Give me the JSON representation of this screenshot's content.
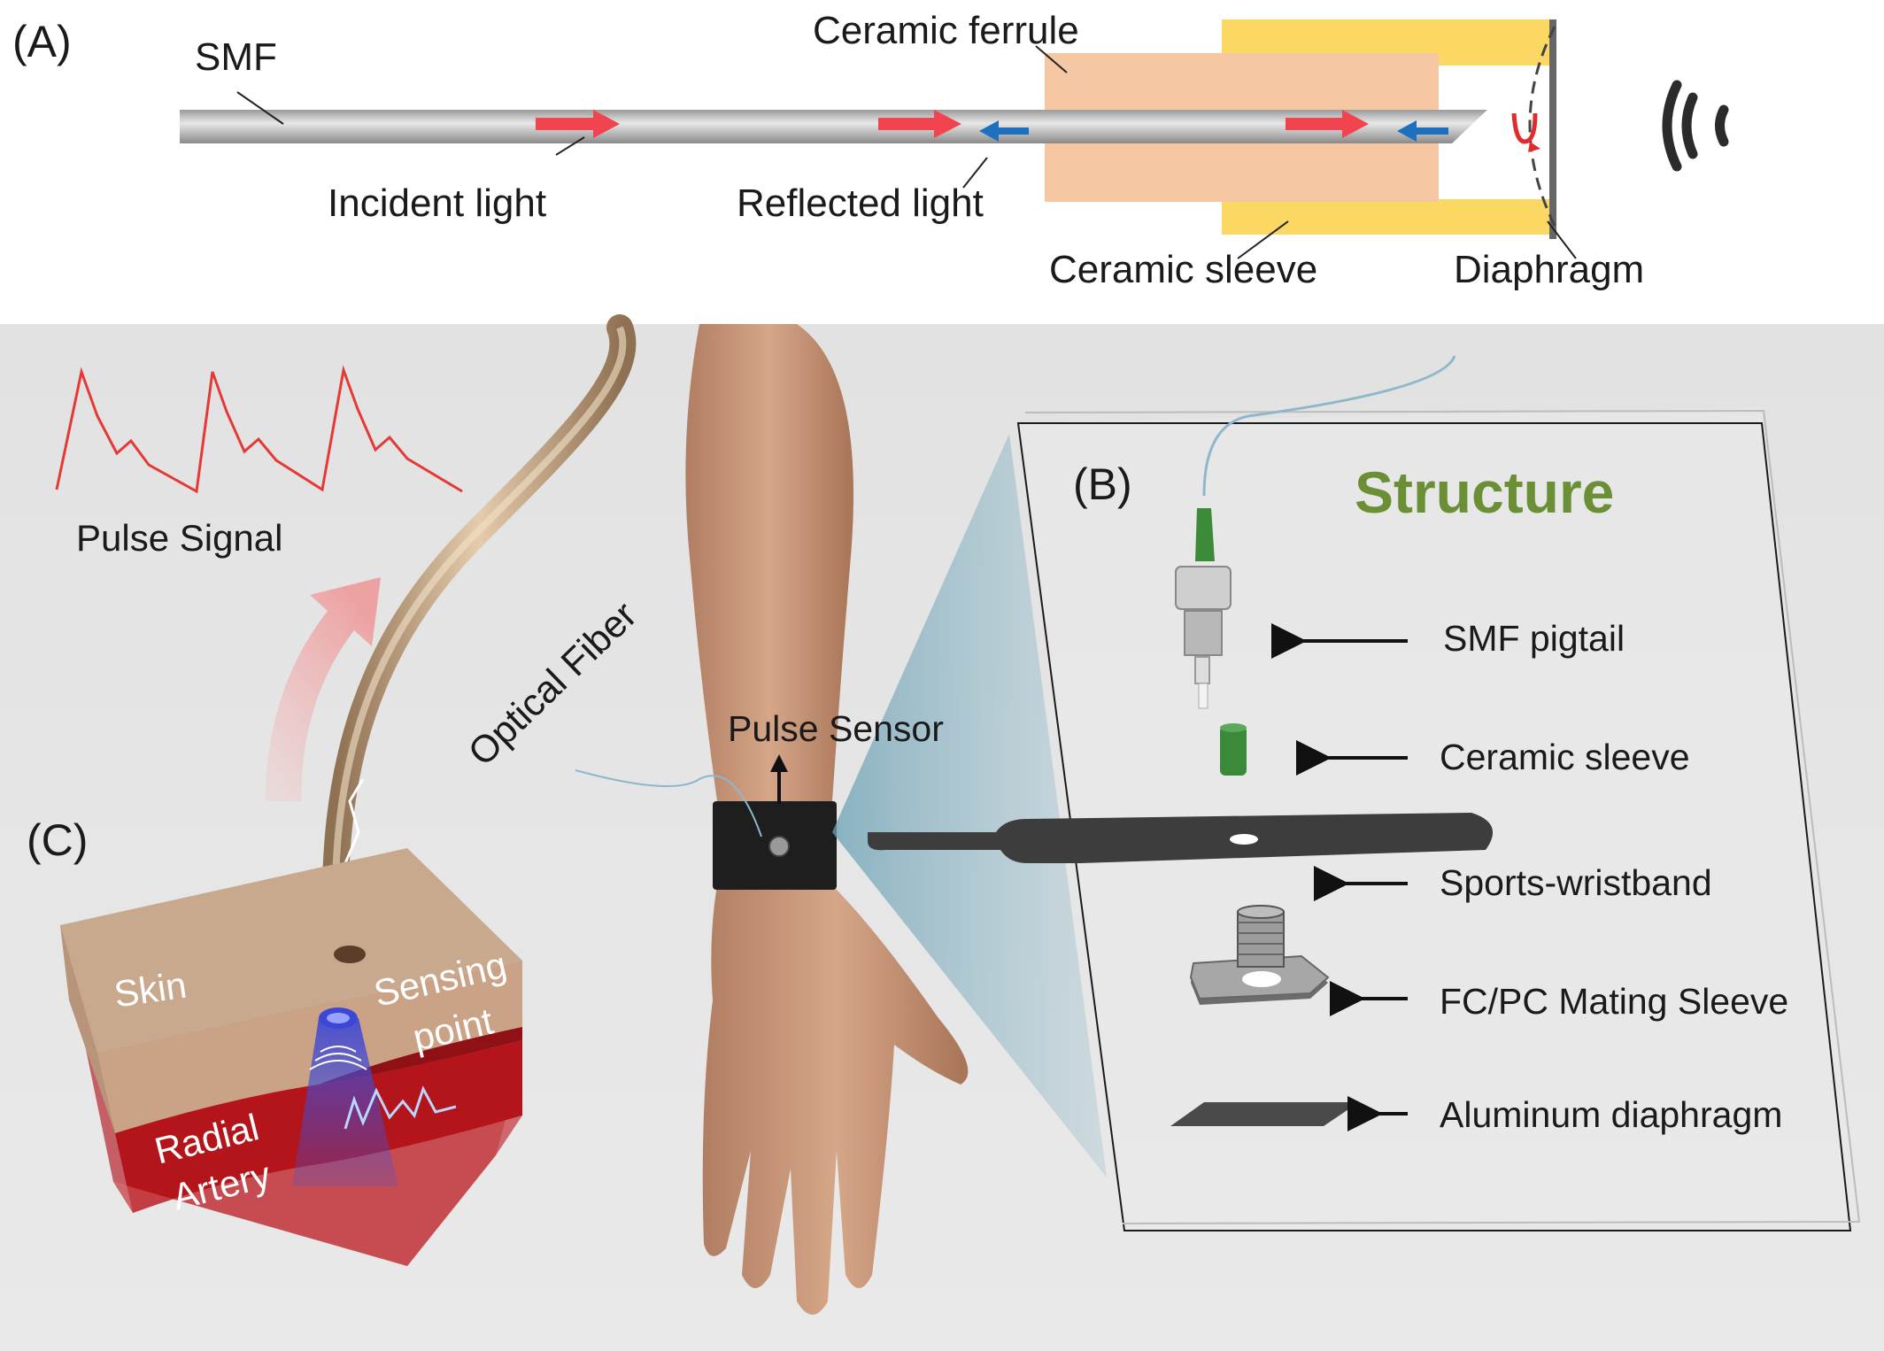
{
  "panel_a": {
    "tag": "(A)",
    "smf": "SMF",
    "ceramic_ferrule": "Ceramic ferrule",
    "incident_light": "Incident light",
    "reflected_light": "Reflected light",
    "ceramic_sleeve": "Ceramic sleeve",
    "diaphragm": "Diaphragm",
    "sound_icon": "sound-wave-icon"
  },
  "panel_b": {
    "tag": "(B)",
    "title": "Structure",
    "items": [
      {
        "label": "SMF pigtail",
        "icon": "smf-pigtail-icon"
      },
      {
        "label": "Ceramic sleeve",
        "icon": "ceramic-sleeve-icon"
      },
      {
        "label": "Sports-wristband",
        "icon": "wristband-icon"
      },
      {
        "label": "FC/PC Mating Sleeve",
        "icon": "mating-sleeve-icon"
      },
      {
        "label": "Aluminum diaphragm",
        "icon": "diaphragm-icon"
      }
    ]
  },
  "panel_c": {
    "tag": "(C)",
    "pulse_signal": "Pulse Signal",
    "optical_fiber": "Optical Fiber",
    "skin": "Skin",
    "sensing_point_line1": "Sensing",
    "sensing_point_line2": "point",
    "radial_artery_line1": "Radial",
    "radial_artery_line2": "Artery"
  },
  "arm": {
    "pulse_sensor": "Pulse Sensor"
  },
  "colors": {
    "light_arrow": "#f2444f",
    "reflect_arrow": "#1f6fbf",
    "ferrule": "#f6c7a3",
    "sleeve": "#fbd764",
    "structure_title": "#6a8f35",
    "pulse_line": "#e53935",
    "artery": "#b3151b",
    "skin": "#c9a98e",
    "background_lower": "#e6e6e6"
  }
}
